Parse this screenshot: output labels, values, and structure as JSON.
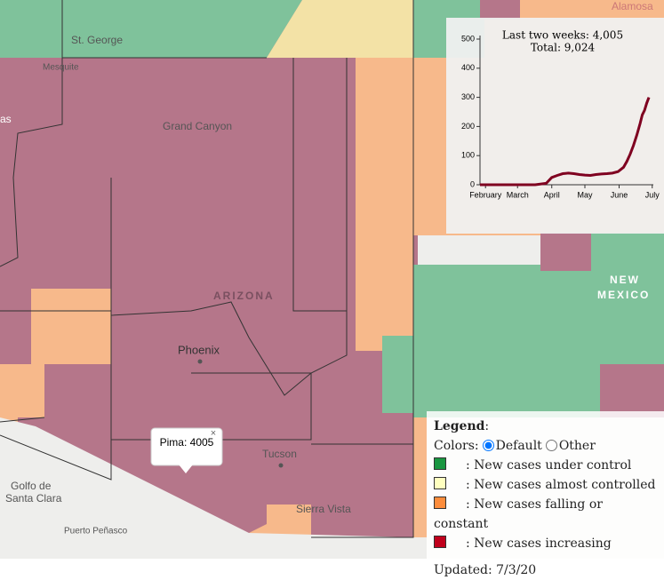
{
  "map": {
    "labels": [
      "St. George",
      "Mesquite",
      "Grand Canyon",
      "ARIZONA",
      "Phoenix",
      "Tucson",
      "Sierra Vista",
      "Golfo de",
      "Santa Clara",
      "Puerto Peñasco",
      "NEW",
      "MEXICO",
      "Alamosa",
      "as"
    ]
  },
  "popup": {
    "text": "Pima: 4005",
    "close": "×"
  },
  "inset_chart": {
    "type": "line",
    "title_lines": [
      "Last two weeks: 4,005",
      "Total: 9,024"
    ],
    "x": [
      -5,
      0,
      20,
      45,
      55,
      60,
      65,
      70,
      75,
      80,
      85,
      90,
      95,
      100,
      105,
      110,
      115,
      120,
      125,
      128,
      131,
      134,
      137,
      140,
      142,
      144,
      146,
      148
    ],
    "series": [
      {
        "color": "#7f0020",
        "values": [
          0,
          0,
          0,
          0,
          5,
          25,
          32,
          38,
          40,
          38,
          35,
          33,
          32,
          35,
          37,
          38,
          40,
          45,
          60,
          80,
          105,
          135,
          170,
          210,
          240,
          255,
          280,
          300
        ]
      }
    ],
    "xlim": [
      -5,
      152
    ],
    "ylim": [
      0,
      500
    ],
    "yticks": [
      0,
      100,
      200,
      300,
      400,
      500
    ],
    "xticks": [
      {
        "value": 0,
        "label": "February"
      },
      {
        "value": 29,
        "label": "March"
      },
      {
        "value": 60,
        "label": "April"
      },
      {
        "value": 90,
        "label": "May"
      },
      {
        "value": 121,
        "label": "June"
      },
      {
        "value": 151,
        "label": "July"
      }
    ]
  },
  "legend": {
    "title": "Legend",
    "colors_label": "Colors:",
    "options": [
      "Default",
      "Other"
    ],
    "items": [
      {
        "label": ": New cases under control",
        "color": "#1a9641"
      },
      {
        "label": ": New cases almost controlled",
        "color": "#ffffbf"
      },
      {
        "label": ": New cases falling or constant",
        "color": "#fd8d3c"
      },
      {
        "label": ": New cases increasing",
        "color": "#c0001c"
      }
    ],
    "updated": "Updated: 7/3/20"
  }
}
